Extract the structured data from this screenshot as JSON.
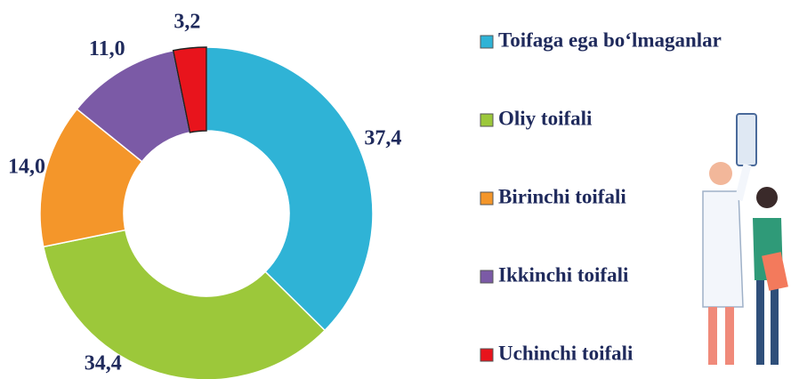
{
  "chart_data": {
    "type": "donut",
    "categories": [
      "Toifaga ega bo‘lmaganlar",
      "Oliy toifali",
      "Birinchi toifali",
      "Ikkinchi toifali",
      "Uchinchi toifali"
    ],
    "values": [
      37.4,
      34.4,
      14.0,
      11.0,
      3.2
    ],
    "value_labels": [
      "37,4",
      "34,4",
      "14,0",
      "11,0",
      "3,2"
    ],
    "colors": [
      "#2fb3d6",
      "#9cc83a",
      "#f4962a",
      "#7b5aa6",
      "#e8141c"
    ],
    "legend": "right"
  }
}
